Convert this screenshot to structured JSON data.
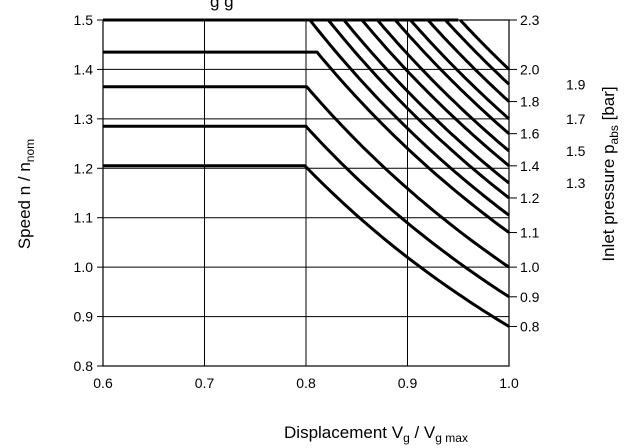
{
  "chart_data": {
    "type": "line",
    "title_fragment": "g   g",
    "xlabel": {
      "main": "Displacement V",
      "sub1": "g",
      "mid": " / V",
      "sub2": "g max"
    },
    "ylabel": {
      "main": "Speed n / n",
      "sub": "nom"
    },
    "y2label": {
      "main": "Inlet pressure p",
      "sub": "abs",
      "tail": " [bar]"
    },
    "xlim": [
      0.6,
      1.0
    ],
    "ylim": [
      0.8,
      1.5
    ],
    "x_ticks": [
      "0.6",
      "0.7",
      "0.8",
      "0.9",
      "1.0"
    ],
    "y_ticks": [
      "0.8",
      "0.9",
      "1.0",
      "1.1",
      "1.2",
      "1.3",
      "1.4",
      "1.5"
    ],
    "grid": true,
    "right_labels_inner": [
      {
        "text": "2.3",
        "y": 1.5
      },
      {
        "text": "2.0",
        "y": 1.4
      },
      {
        "text": "1.8",
        "y": 1.335
      },
      {
        "text": "1.6",
        "y": 1.27
      },
      {
        "text": "1.4",
        "y": 1.205
      },
      {
        "text": "1.2",
        "y": 1.14
      },
      {
        "text": "1.1",
        "y": 1.07
      },
      {
        "text": "1.0",
        "y": 1.0
      },
      {
        "text": "0.9",
        "y": 0.94
      },
      {
        "text": "0.8",
        "y": 0.88
      }
    ],
    "right_labels_outer": [
      {
        "text": "1.9",
        "y": 1.37
      },
      {
        "text": "1.7",
        "y": 1.3
      },
      {
        "text": "1.5",
        "y": 1.235
      },
      {
        "text": "1.3",
        "y": 1.17
      }
    ],
    "series": [
      {
        "values_at_x1": 0.88,
        "plateau": 1.205
      },
      {
        "values_at_x1": 0.94,
        "plateau": 1.285
      },
      {
        "values_at_x1": 1.0,
        "plateau": 1.365
      },
      {
        "values_at_x1": 1.07,
        "plateau": 1.435
      },
      {
        "values_at_x1": 1.105,
        "plateau": 1.5
      },
      {
        "values_at_x1": 1.14,
        "plateau": 1.5
      },
      {
        "values_at_x1": 1.17,
        "plateau": 1.5
      },
      {
        "values_at_x1": 1.205,
        "plateau": 1.5
      },
      {
        "values_at_x1": 1.235,
        "plateau": 1.5
      },
      {
        "values_at_x1": 1.27,
        "plateau": 1.5
      },
      {
        "values_at_x1": 1.3,
        "plateau": 1.5
      },
      {
        "values_at_x1": 1.335,
        "plateau": 1.5
      },
      {
        "values_at_x1": 1.37,
        "plateau": 1.5
      },
      {
        "values_at_x1": 1.4,
        "plateau": 1.5
      }
    ]
  }
}
